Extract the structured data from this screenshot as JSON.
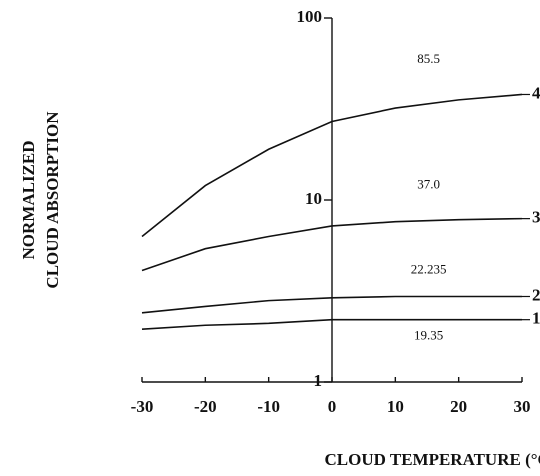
{
  "chart_data": {
    "type": "line",
    "x_label": "CLOUD TEMPERATURE (°C)",
    "y_label": [
      "NORMALIZED",
      "CLOUD ABSORPTION"
    ],
    "x": [
      -30,
      -20,
      -10,
      0,
      10,
      20,
      30
    ],
    "xlim": [
      -30,
      30
    ],
    "xticks": [
      -30,
      -20,
      -10,
      0,
      10,
      20,
      30
    ],
    "ylim": [
      1,
      100
    ],
    "yticks": [
      1,
      10,
      100
    ],
    "yscale": "log",
    "series": [
      {
        "name": "1",
        "annotation": "19.35",
        "color": "#111111",
        "values": [
          1.95,
          2.05,
          2.1,
          2.2,
          2.2,
          2.2,
          2.2
        ]
      },
      {
        "name": "2",
        "annotation": "22.235",
        "color": "#111111",
        "values": [
          2.4,
          2.6,
          2.8,
          2.9,
          2.95,
          2.95,
          2.95
        ]
      },
      {
        "name": "3",
        "annotation": "37.0",
        "color": "#111111",
        "values": [
          4.1,
          5.4,
          6.3,
          7.2,
          7.6,
          7.8,
          7.9
        ]
      },
      {
        "name": "4",
        "annotation": "85.5",
        "color": "#111111",
        "values": [
          6.3,
          12,
          19,
          27,
          32,
          35.5,
          38
        ]
      }
    ]
  }
}
